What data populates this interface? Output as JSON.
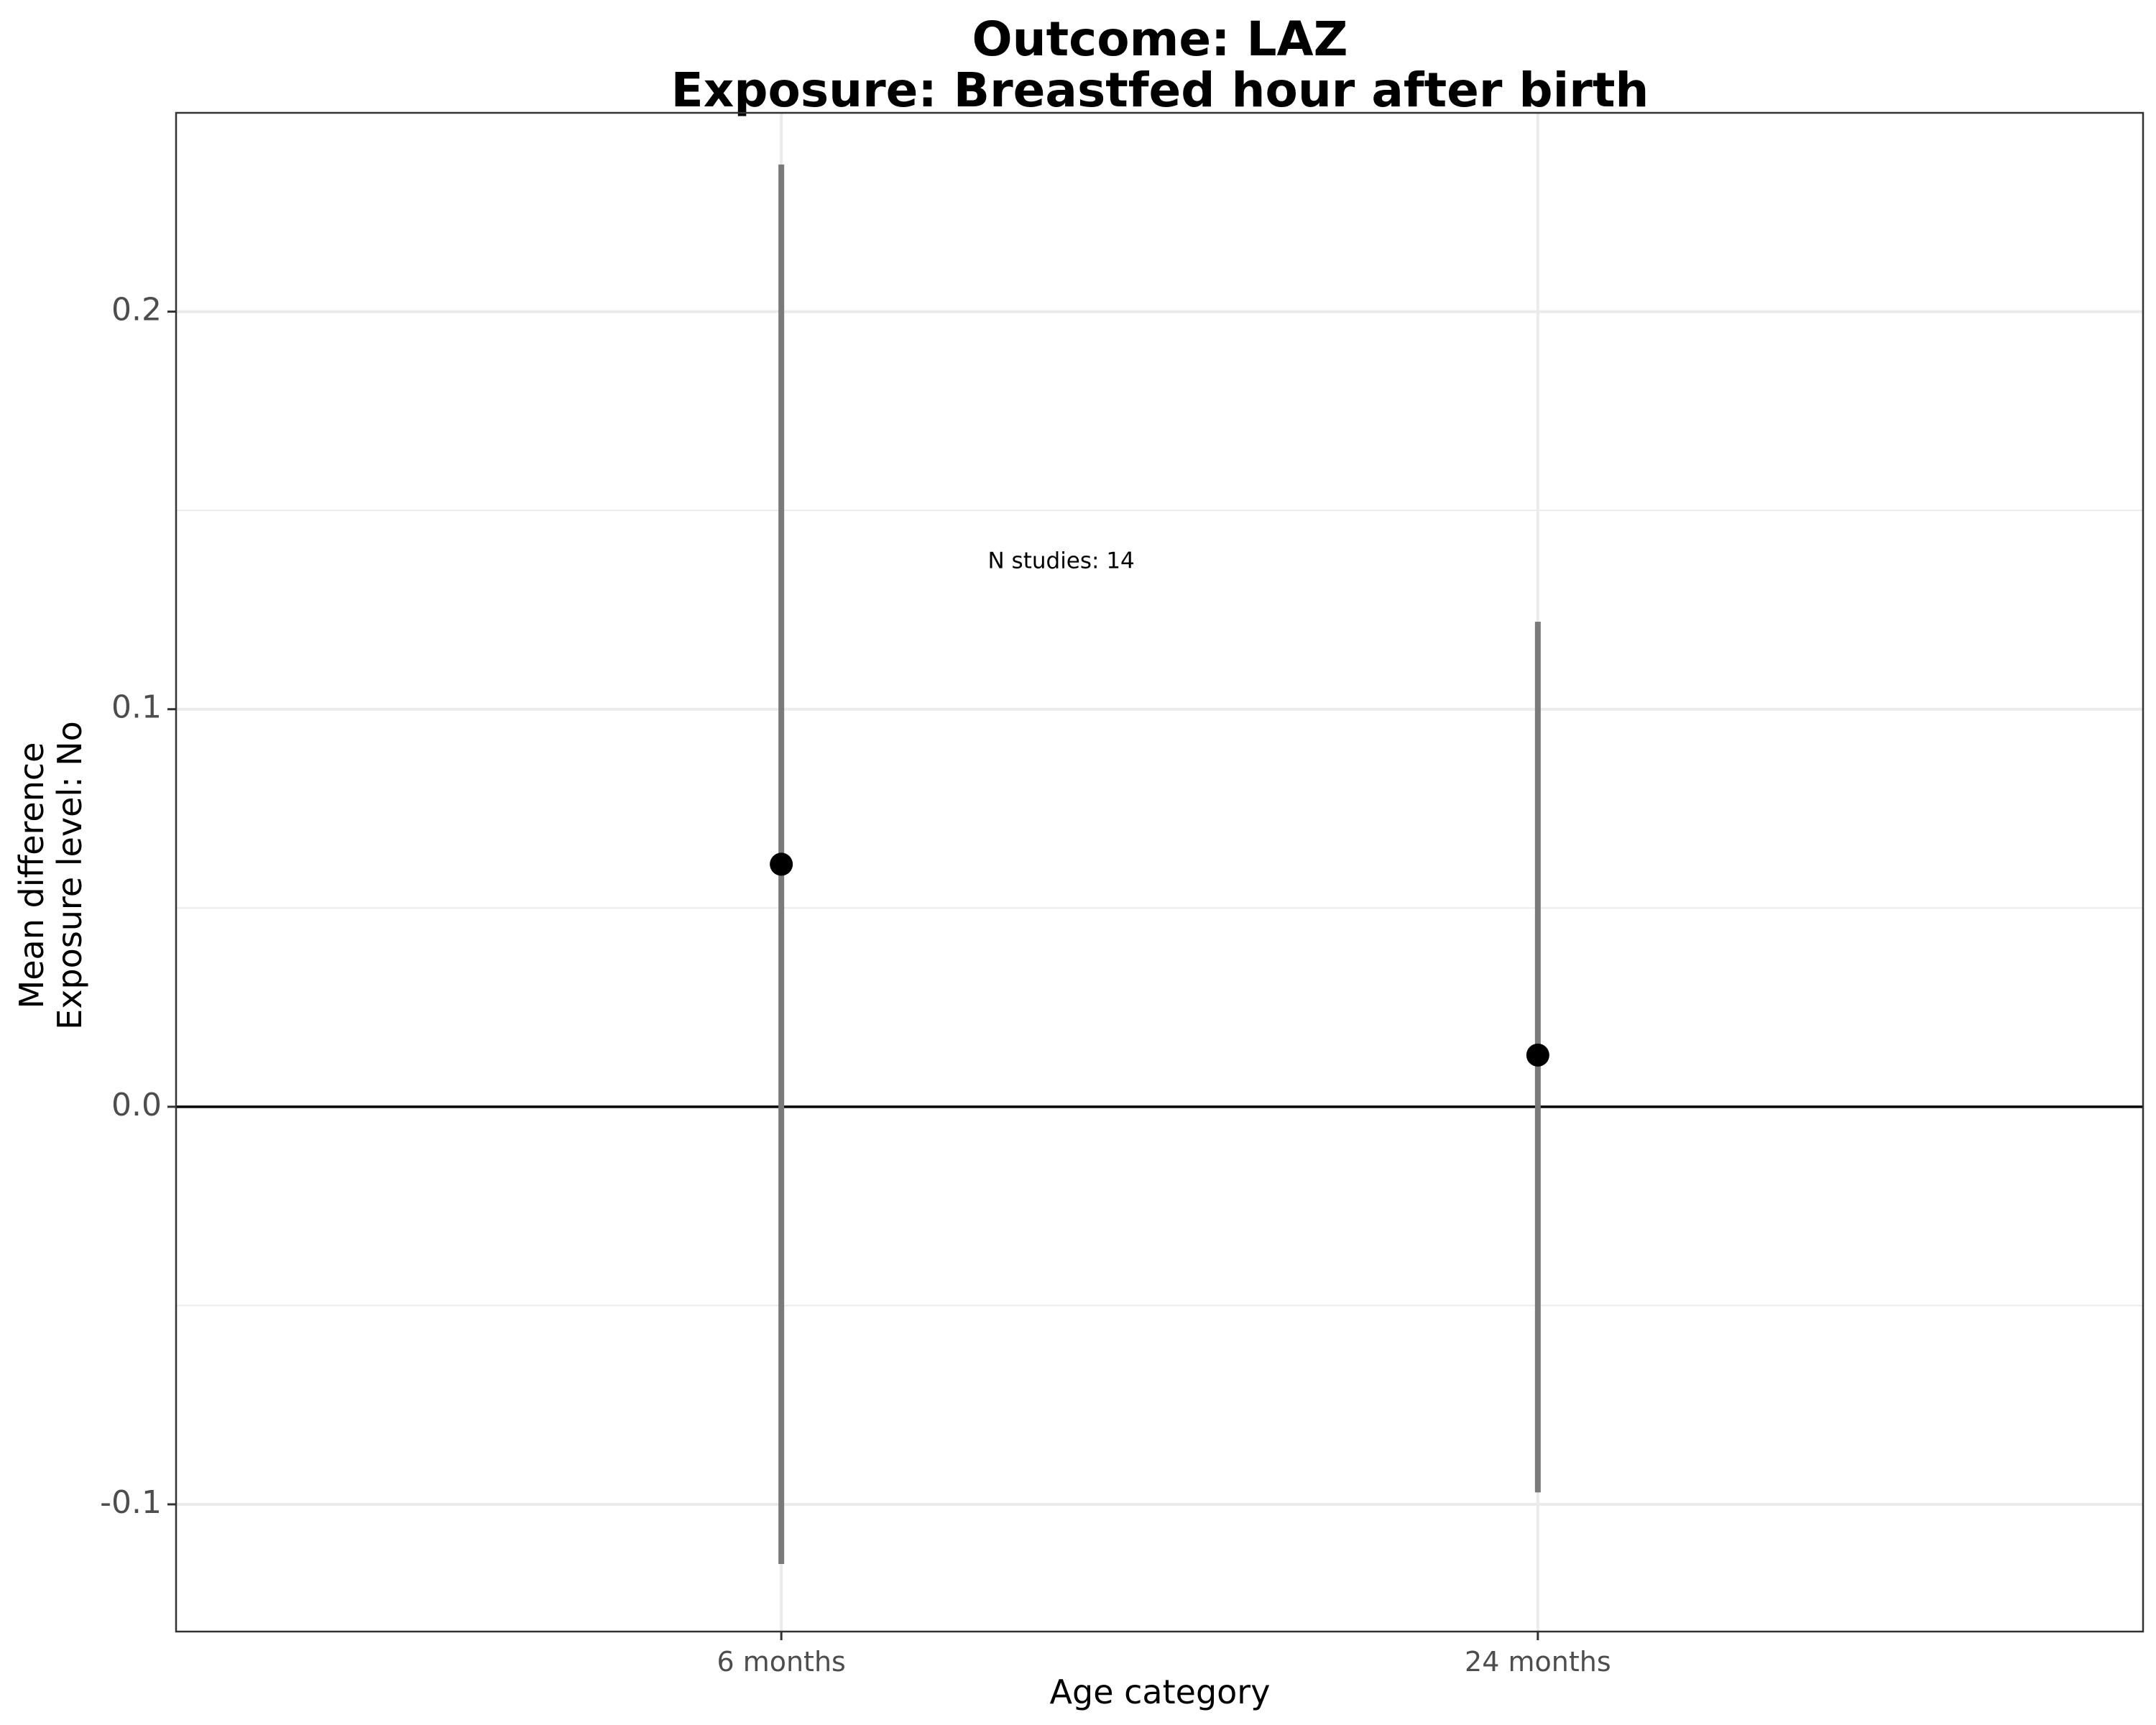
{
  "chart_data": {
    "type": "scatter",
    "title_line1": "Outcome: LAZ",
    "title_line2": "Exposure: Breastfed hour after birth",
    "xlabel": "Age category",
    "ylabel_line1": "Mean difference",
    "ylabel_line2": "Exposure level: No",
    "categories": [
      "6 months",
      "24 months"
    ],
    "estimates": [
      0.061,
      0.013
    ],
    "ci_lower": [
      -0.115,
      -0.097
    ],
    "ci_upper": [
      0.237,
      0.122
    ],
    "yticks": [
      -0.1,
      0.0,
      0.1,
      0.2
    ],
    "ytick_labels": [
      "-0.1",
      "0.0",
      "0.1",
      "0.2"
    ],
    "ylim": [
      -0.132,
      0.25
    ],
    "reference_line": 0,
    "annotation": "N studies: 14",
    "annotation_x": "6 months",
    "annotation_y": 0.137,
    "grid": true,
    "colors": {
      "point": "#000000",
      "errorbar": "#7a7a7a",
      "grid": "#ebebeb",
      "panel_border": "#333333"
    }
  }
}
